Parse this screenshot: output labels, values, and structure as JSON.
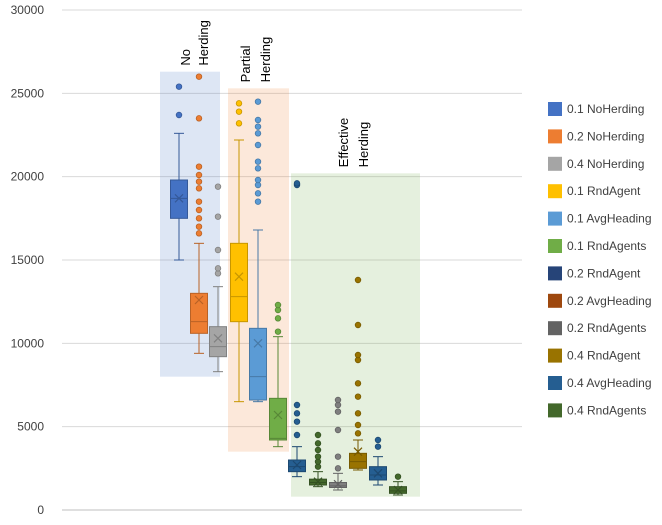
{
  "chart_data": {
    "type": "box",
    "title": "",
    "xlabel": "",
    "ylabel": "",
    "ylim": [
      0,
      30000
    ],
    "yticks": [
      0,
      5000,
      10000,
      15000,
      20000,
      25000,
      30000
    ],
    "ytick_labels": [
      "0",
      "5000",
      "10000",
      "15000",
      "20000",
      "25000",
      "30000"
    ],
    "legend_position": "right",
    "regions": [
      {
        "label_lines": [
          "No",
          "Herding"
        ],
        "y_range": [
          8000,
          26300
        ],
        "color": "#4472C4"
      },
      {
        "label_lines": [
          "Partial",
          "Herding"
        ],
        "y_range": [
          3500,
          25300
        ],
        "color": "#ED7D31"
      },
      {
        "label_lines": [
          "Effective",
          "Herding"
        ],
        "y_range": [
          800,
          20200
        ],
        "color": "#70AD47"
      }
    ],
    "series": [
      {
        "name": "0.1 NoHerding",
        "color": "#4472C4",
        "whisker_low": 15000,
        "q1": 17500,
        "median": 18700,
        "mean": 18700,
        "q3": 19800,
        "whisker_high": 22600,
        "outliers": [
          23700,
          25400
        ]
      },
      {
        "name": "0.2 NoHerding",
        "color": "#ED7D31",
        "whisker_low": 9400,
        "q1": 10600,
        "median": 11300,
        "mean": 12600,
        "q3": 13000,
        "whisker_high": 16000,
        "outliers": [
          16600,
          17000,
          17500,
          18000,
          18500,
          19300,
          19700,
          20100,
          20600,
          23500,
          26000
        ]
      },
      {
        "name": "0.4 NoHerding",
        "color": "#A5A5A5",
        "whisker_low": 8300,
        "q1": 9200,
        "median": 9800,
        "mean": 10300,
        "q3": 11000,
        "whisker_high": 13400,
        "outliers": [
          14200,
          14500,
          15600,
          17600,
          19400
        ]
      },
      {
        "name": "0.1 RndAgent",
        "color": "#FFC000",
        "whisker_low": 6500,
        "q1": 11300,
        "median": 12800,
        "mean": 14000,
        "q3": 16000,
        "whisker_high": 22200,
        "outliers": [
          23200,
          23900,
          24400
        ]
      },
      {
        "name": "0.1 AvgHeading",
        "color": "#5B9BD5",
        "whisker_low": 6500,
        "q1": 6600,
        "median": 8000,
        "mean": 10000,
        "q3": 10900,
        "whisker_high": 16800,
        "outliers": [
          18500,
          19000,
          19500,
          19800,
          20500,
          20900,
          21900,
          22600,
          23000,
          23400,
          24500
        ]
      },
      {
        "name": "0.1 RndAgents",
        "color": "#70AD47",
        "whisker_low": 3800,
        "q1": 4200,
        "median": 4300,
        "mean": 5700,
        "q3": 6700,
        "whisker_high": 10400,
        "outliers": [
          10700,
          11500,
          12000,
          12300
        ]
      },
      {
        "name": "0.2 RndAgent",
        "color": "#264478",
        "whisker_low": null,
        "q1": null,
        "median": null,
        "mean": null,
        "q3": null,
        "whisker_high": null,
        "outliers": []
      },
      {
        "name": "0.2 AvgHeading",
        "color": "#9E480E",
        "whisker_low": null,
        "q1": null,
        "median": null,
        "mean": null,
        "q3": null,
        "whisker_high": null,
        "outliers": []
      },
      {
        "name": "0.2 RndAgents",
        "color": "#636363",
        "whisker_low": null,
        "q1": null,
        "median": null,
        "mean": null,
        "q3": null,
        "whisker_high": null,
        "outliers": []
      },
      {
        "name": "0.4 RndAgent",
        "color": "#997300",
        "whisker_low": null,
        "q1": null,
        "median": null,
        "mean": null,
        "q3": null,
        "whisker_high": null,
        "outliers": []
      },
      {
        "name": "0.4 AvgHeading",
        "color": "#255E91",
        "whisker_low": 2000,
        "q1": 2300,
        "median": 2600,
        "mean": 2700,
        "q3": 3000,
        "whisker_high": 3800,
        "outliers": [
          4500,
          5300,
          5800,
          6300,
          19500,
          19600
        ]
      },
      {
        "name": "0.4 RndAgents",
        "color": "#43682B",
        "whisker_low": 1400,
        "q1": 1500,
        "median": 1650,
        "mean": 1700,
        "q3": 1850,
        "whisker_high": 2300,
        "outliers": [
          2600,
          2900,
          3200,
          3600,
          4000,
          4500
        ]
      }
    ],
    "extra_boxes": [
      {
        "color": "#7F7F7F",
        "whisker_low": 1200,
        "q1": 1350,
        "median": 1450,
        "mean": 1550,
        "q3": 1650,
        "whisker_high": 2200,
        "outliers": [
          2500,
          3200,
          4800,
          5900,
          6300,
          6600
        ]
      },
      {
        "color": "#997300",
        "whisker_low": 2400,
        "q1": 2500,
        "median": 2900,
        "mean": 3500,
        "q3": 3400,
        "whisker_high": 4200,
        "outliers": [
          4600,
          5100,
          5800,
          6800,
          7600,
          9000,
          9300,
          11100,
          13800
        ]
      },
      {
        "color": "#255E91",
        "whisker_low": 1500,
        "q1": 1800,
        "median": 2100,
        "mean": 2200,
        "q3": 2600,
        "whisker_high": 3200,
        "outliers": [
          3800,
          4200
        ]
      },
      {
        "color": "#43682B",
        "whisker_low": 900,
        "q1": 1000,
        "median": 1150,
        "mean": 1200,
        "q3": 1400,
        "whisker_high": 1700,
        "outliers": [
          2000
        ]
      }
    ]
  }
}
